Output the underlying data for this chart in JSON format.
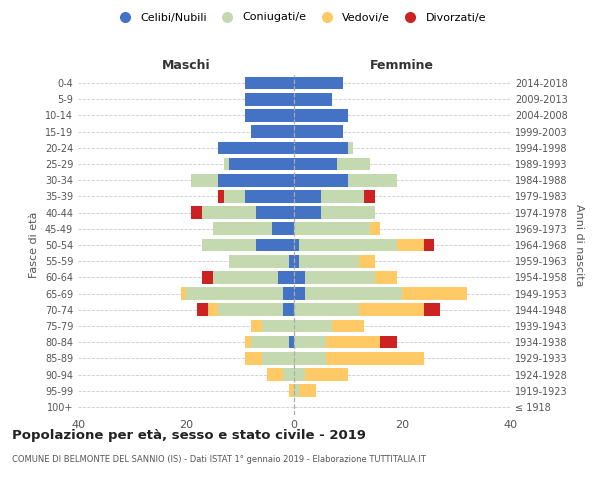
{
  "age_groups": [
    "100+",
    "95-99",
    "90-94",
    "85-89",
    "80-84",
    "75-79",
    "70-74",
    "65-69",
    "60-64",
    "55-59",
    "50-54",
    "45-49",
    "40-44",
    "35-39",
    "30-34",
    "25-29",
    "20-24",
    "15-19",
    "10-14",
    "5-9",
    "0-4"
  ],
  "birth_years": [
    "≤ 1918",
    "1919-1923",
    "1924-1928",
    "1929-1933",
    "1934-1938",
    "1939-1943",
    "1944-1948",
    "1949-1953",
    "1954-1958",
    "1959-1963",
    "1964-1968",
    "1969-1973",
    "1974-1978",
    "1979-1983",
    "1984-1988",
    "1989-1993",
    "1994-1998",
    "1999-2003",
    "2004-2008",
    "2009-2013",
    "2014-2018"
  ],
  "colors": {
    "celibe": "#4472C4",
    "coniugato": "#c5d9b0",
    "vedovo": "#ffc966",
    "divorziato": "#cc2222"
  },
  "males": {
    "celibe": [
      0,
      0,
      0,
      0,
      1,
      0,
      2,
      2,
      3,
      1,
      7,
      4,
      7,
      9,
      14,
      12,
      14,
      8,
      9,
      9,
      9
    ],
    "coniugato": [
      0,
      0,
      2,
      6,
      7,
      6,
      12,
      18,
      12,
      11,
      10,
      11,
      10,
      4,
      5,
      1,
      0,
      0,
      0,
      0,
      0
    ],
    "vedovo": [
      0,
      1,
      3,
      3,
      1,
      2,
      2,
      1,
      0,
      0,
      0,
      0,
      0,
      0,
      0,
      0,
      0,
      0,
      0,
      0,
      0
    ],
    "divorziato": [
      0,
      0,
      0,
      0,
      0,
      0,
      2,
      0,
      2,
      0,
      0,
      0,
      2,
      1,
      0,
      0,
      0,
      0,
      0,
      0,
      0
    ]
  },
  "females": {
    "nubile": [
      0,
      0,
      0,
      0,
      0,
      0,
      0,
      2,
      2,
      1,
      1,
      0,
      5,
      5,
      10,
      8,
      10,
      9,
      10,
      7,
      9
    ],
    "coniugata": [
      0,
      1,
      2,
      6,
      6,
      7,
      12,
      18,
      13,
      11,
      18,
      14,
      10,
      8,
      9,
      6,
      1,
      0,
      0,
      0,
      0
    ],
    "vedova": [
      0,
      3,
      8,
      18,
      10,
      6,
      12,
      12,
      4,
      3,
      5,
      2,
      0,
      0,
      0,
      0,
      0,
      0,
      0,
      0,
      0
    ],
    "divorziata": [
      0,
      0,
      0,
      0,
      3,
      0,
      3,
      0,
      0,
      0,
      2,
      0,
      0,
      2,
      0,
      0,
      0,
      0,
      0,
      0,
      0
    ]
  },
  "title": "Popolazione per età, sesso e stato civile - 2019",
  "subtitle": "COMUNE DI BELMONTE DEL SANNIO (IS) - Dati ISTAT 1° gennaio 2019 - Elaborazione TUTTITALIA.IT",
  "xlabel_left": "Maschi",
  "xlabel_right": "Femmine",
  "ylabel_left": "Fasce di età",
  "ylabel_right": "Anni di nascita",
  "xlim": [
    -40,
    40
  ],
  "xticks": [
    -40,
    -20,
    0,
    20,
    40
  ],
  "xticklabels": [
    "40",
    "20",
    "0",
    "20",
    "40"
  ],
  "legend_labels": [
    "Celibi/Nubili",
    "Coniugati/e",
    "Vedovi/e",
    "Divorzati/e"
  ],
  "bg_color": "#ffffff"
}
